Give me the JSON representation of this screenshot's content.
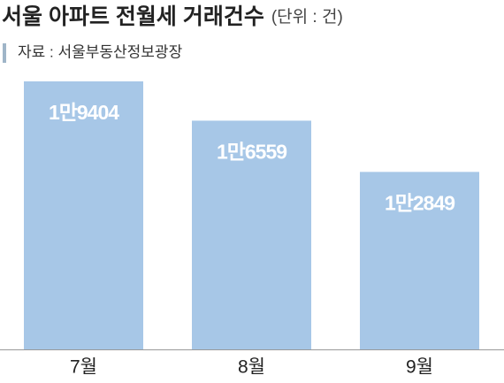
{
  "chart_data": {
    "type": "bar",
    "title": "서울 아파트 전월세 거래건수",
    "subtitle": "(단위 : 건)",
    "source": "자료 : 서울부동산정보광장",
    "categories": [
      "7월",
      "8월",
      "9월"
    ],
    "values": [
      19404,
      16559,
      12849
    ],
    "value_labels": [
      "1만9404",
      "1만6559",
      "1만2849"
    ],
    "color": "#a7c7e7"
  }
}
